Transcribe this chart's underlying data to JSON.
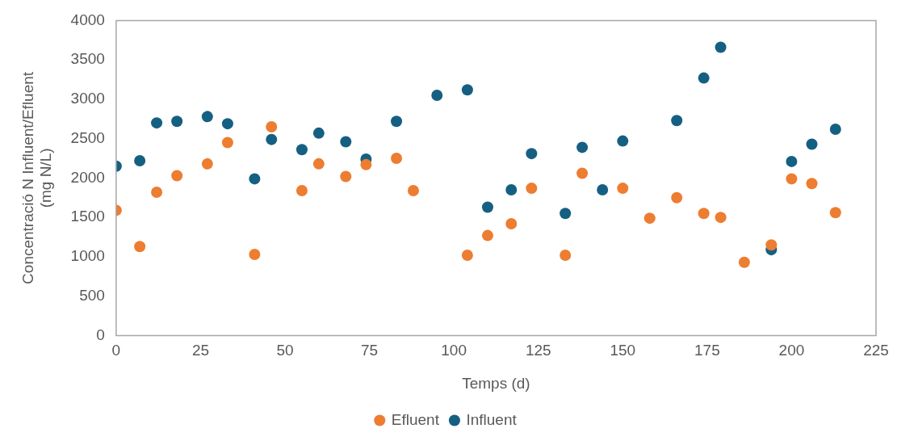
{
  "chart_data": {
    "type": "scatter",
    "xlabel": "Temps (d)",
    "ylabel": "Concentració N Influent/Efluent\n(mg N/L)",
    "xlim": [
      0,
      225
    ],
    "xticks": [
      0,
      25,
      50,
      75,
      100,
      125,
      150,
      175,
      200,
      225
    ],
    "ylim": [
      0,
      4000
    ],
    "yticks": [
      0,
      500,
      1000,
      1500,
      2000,
      2500,
      3000,
      3500,
      4000
    ],
    "grid": false,
    "legend": "bottom",
    "marker": "circle",
    "series": [
      {
        "name": "Efluent",
        "color": "#ed7d31",
        "x": [
          0,
          7,
          12,
          18,
          27,
          33,
          41,
          46,
          55,
          60,
          68,
          74,
          83,
          88,
          104,
          110,
          117,
          123,
          133,
          138,
          150,
          158,
          166,
          174,
          179,
          186,
          194,
          200,
          206,
          213
        ],
        "values": [
          1590,
          1130,
          1820,
          2030,
          2180,
          2450,
          1030,
          2650,
          1840,
          2180,
          2020,
          2170,
          2250,
          1840,
          1020,
          1270,
          1420,
          1870,
          1020,
          2060,
          1870,
          1490,
          1750,
          1550,
          1500,
          930,
          1150,
          1990,
          1930,
          1560
        ]
      },
      {
        "name": "Influent",
        "color": "#156082",
        "x": [
          0,
          7,
          12,
          18,
          27,
          33,
          41,
          46,
          55,
          60,
          68,
          74,
          83,
          95,
          104,
          110,
          117,
          123,
          133,
          138,
          144,
          150,
          166,
          174,
          179,
          194,
          200,
          206,
          213
        ],
        "values": [
          2150,
          2220,
          2700,
          2720,
          2780,
          2690,
          1990,
          2490,
          2360,
          2570,
          2460,
          2240,
          2720,
          3050,
          3120,
          1630,
          1850,
          2310,
          1550,
          2390,
          1850,
          2470,
          2730,
          3270,
          3660,
          1090,
          2210,
          2430,
          2620
        ]
      }
    ]
  }
}
